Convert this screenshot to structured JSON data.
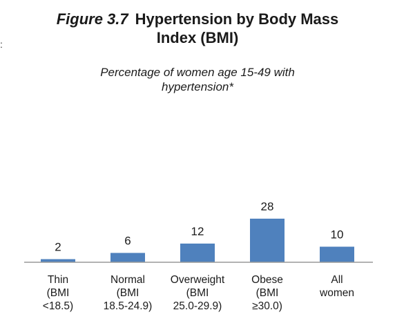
{
  "figure": {
    "number": "Figure 3.7",
    "title_line1": "Hypertension by Body Mass",
    "title_line2": "Index (BMI)",
    "subtitle_line1": "Percentage of women age 15-49 with",
    "subtitle_line2": "hypertension*",
    "margin_mark": ":"
  },
  "chart_data": {
    "type": "bar",
    "categories": [
      [
        "Thin",
        "(BMI",
        "<18.5)"
      ],
      [
        "Normal",
        "(BMI",
        "18.5-24.9)"
      ],
      [
        "Overweight",
        "(BMI",
        "25.0-29.9)"
      ],
      [
        "Obese",
        "(BMI",
        "≥30.0)"
      ],
      [
        "All",
        "women"
      ]
    ],
    "values": [
      2,
      6,
      12,
      28,
      10
    ],
    "data_labels": [
      "2",
      "6",
      "12",
      "28",
      "10"
    ],
    "title": "Hypertension by Body Mass Index (BMI)",
    "subtitle": "Percentage of women age 15-49 with hypertension*",
    "xlabel": "",
    "ylabel": "",
    "ylim": [
      0,
      28
    ],
    "grid": false,
    "legend": "none",
    "bar_color": "#4f81bd"
  }
}
